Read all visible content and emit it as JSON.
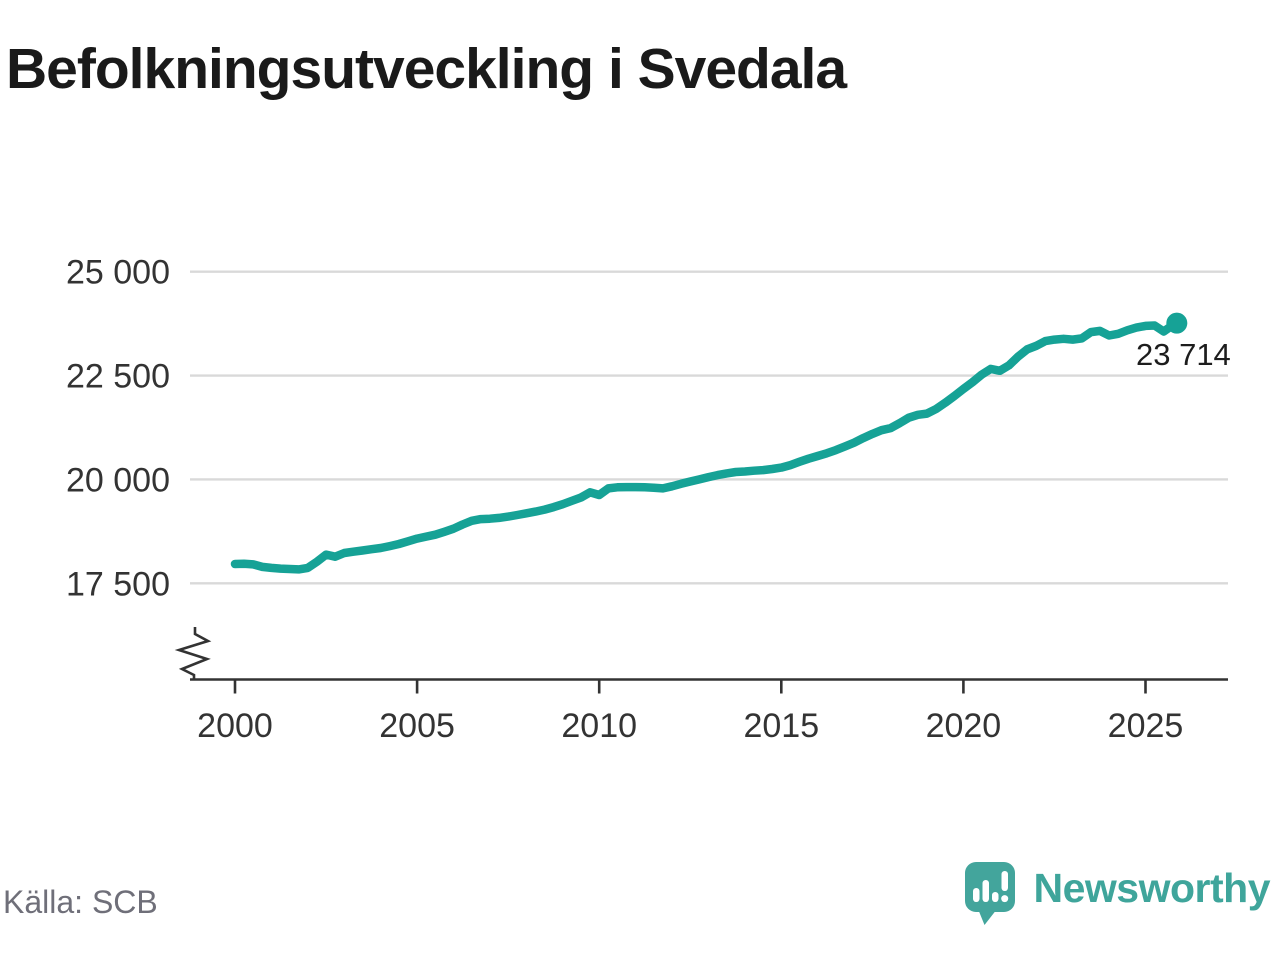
{
  "title": "Befolkningsutveckling i Svedala",
  "source": "Källa: SCB",
  "branding": {
    "name": "Newsworthy",
    "icon": "newsworthy-speech-bubble-bar-chart"
  },
  "colors": {
    "line": "#16a296",
    "marker": "#16a296",
    "grid": "#d9d9d9",
    "axis": "#333333",
    "tick_text": "#333333",
    "title_text": "#1a1a1a",
    "source_text": "#6f6f79",
    "brand_teal": "#43a59c"
  },
  "chart_data": {
    "type": "line",
    "title": "Befolkningsutveckling i Svedala",
    "xlabel": "",
    "ylabel": "",
    "source": "Källa: SCB",
    "grid": true,
    "legend": "none",
    "axis_break": true,
    "ylim": [
      17500,
      25000
    ],
    "xlim_years": [
      2000,
      2027.3
    ],
    "x_start": 2000.0,
    "x_step_years": 0.25,
    "x_end": 2025.75,
    "end_label": "23 714",
    "end_value": 23714,
    "y_ticks": [
      {
        "value": 25000,
        "label": "25 000"
      },
      {
        "value": 22500,
        "label": "22 500"
      },
      {
        "value": 20000,
        "label": "20 000"
      },
      {
        "value": 17500,
        "label": "17 500"
      }
    ],
    "x_ticks": [
      {
        "value": 2000,
        "label": "2000"
      },
      {
        "value": 2005,
        "label": "2005"
      },
      {
        "value": 2010,
        "label": "2010"
      },
      {
        "value": 2015,
        "label": "2015"
      },
      {
        "value": 2020,
        "label": "2020"
      },
      {
        "value": 2025,
        "label": "2025"
      }
    ],
    "values": [
      17965,
      17970,
      17955,
      17895,
      17870,
      17855,
      17845,
      17835,
      17870,
      18020,
      18190,
      18140,
      18230,
      18260,
      18290,
      18320,
      18350,
      18395,
      18445,
      18510,
      18575,
      18625,
      18670,
      18740,
      18815,
      18915,
      19005,
      19045,
      19055,
      19075,
      19105,
      19145,
      19185,
      19225,
      19275,
      19335,
      19405,
      19485,
      19565,
      19690,
      19625,
      19785,
      19810,
      19815,
      19815,
      19810,
      19800,
      19785,
      19835,
      19895,
      19950,
      20000,
      20055,
      20105,
      20145,
      20180,
      20190,
      20210,
      20225,
      20250,
      20285,
      20345,
      20425,
      20500,
      20565,
      20630,
      20705,
      20795,
      20885,
      20995,
      21095,
      21185,
      21235,
      21355,
      21485,
      21555,
      21585,
      21695,
      21845,
      22005,
      22180,
      22340,
      22520,
      22660,
      22615,
      22745,
      22955,
      23130,
      23215,
      23330,
      23365,
      23385,
      23365,
      23395,
      23545,
      23575,
      23465,
      23505,
      23590,
      23655,
      23695,
      23705,
      23560,
      23714
    ]
  }
}
